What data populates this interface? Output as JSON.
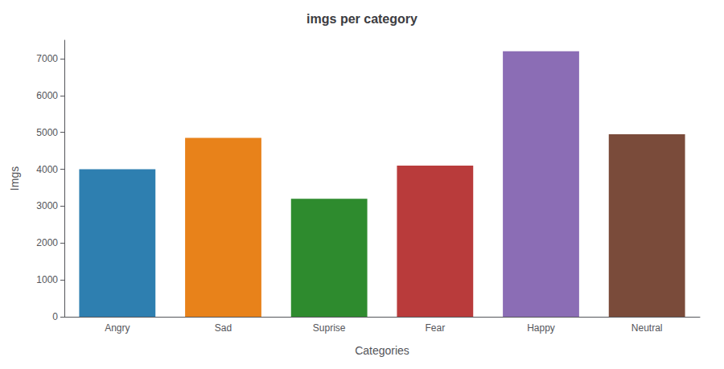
{
  "chart_data": {
    "type": "bar",
    "title": "imgs per category",
    "xlabel": "Categories",
    "ylabel": "Imgs",
    "categories": [
      "Angry",
      "Sad",
      "Suprise",
      "Fear",
      "Happy",
      "Neutral"
    ],
    "values": [
      4000,
      4850,
      3200,
      4100,
      7200,
      4950
    ],
    "colors": [
      "#2e7fb0",
      "#e8821a",
      "#2e8b2e",
      "#b93b3b",
      "#8b6db5",
      "#7a4b3a"
    ],
    "ylim": [
      0,
      7500
    ],
    "yticks": [
      0,
      1000,
      2000,
      3000,
      4000,
      5000,
      6000,
      7000
    ],
    "grid": false
  }
}
